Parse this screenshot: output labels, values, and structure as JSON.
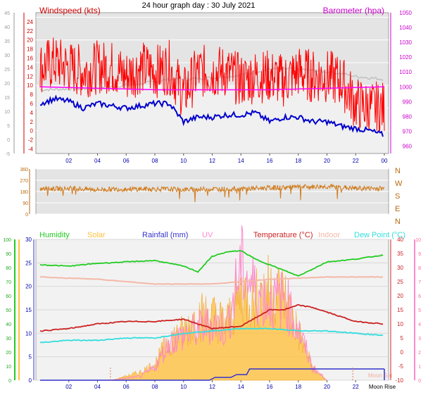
{
  "page_title": "24 hour graph day : 30 July 2021",
  "colors": {
    "windspeed": "#ff0000",
    "windavg": "#0000cc",
    "barometer": "#ff00ff",
    "baro_trace": "#c0c0c0",
    "direction": "#d07a1a",
    "humidity": "#22cc22",
    "solar": "#ffc040",
    "rainfall": "#3333cc",
    "uv": "#ff88cc",
    "temperature": "#cc2222",
    "indoor": "#f4b8a8",
    "dewpoint": "#33dddd",
    "plot_bg": "#e4e4e4",
    "plot_bg_light": "#f2f2f2"
  },
  "chart_data": [
    {
      "type": "line",
      "panel": "wind",
      "left_axis_label": "Windspeed (kts)",
      "right_axis_label": "Barometer (hpa)",
      "y_left": {
        "range": [
          -5,
          26
        ],
        "ticks": [
          -5,
          -4,
          -2,
          0,
          2,
          4,
          5,
          6,
          8,
          10,
          12,
          14,
          15,
          16,
          18,
          20,
          22,
          24,
          25
        ]
      },
      "y_left_outer": {
        "range": [
          -5,
          45
        ],
        "ticks": [
          -5,
          0,
          5,
          10,
          15,
          20,
          25,
          30,
          35,
          40,
          45
        ]
      },
      "y_right": {
        "range": [
          955,
          1050
        ],
        "ticks": [
          960,
          970,
          980,
          990,
          1000,
          1010,
          1020,
          1030,
          1040,
          1050
        ]
      },
      "x_ticks": [
        "02",
        "04",
        "06",
        "08",
        "10",
        "12",
        "14",
        "16",
        "18",
        "20",
        "22",
        "00"
      ],
      "series": [
        {
          "name": "Windspeed",
          "x_hours": [
            0,
            1,
            2,
            3,
            4,
            5,
            6,
            7,
            8,
            9,
            10,
            11,
            12,
            13,
            14,
            15,
            16,
            17,
            18,
            19,
            20,
            21,
            22,
            23,
            24
          ],
          "values": [
            14,
            15,
            14,
            13,
            14,
            14,
            12,
            14,
            13,
            14,
            8,
            13,
            13,
            13,
            11,
            12,
            12,
            11,
            13,
            12,
            12,
            11,
            6,
            5,
            5
          ]
        },
        {
          "name": "Average",
          "x_hours": [
            0,
            1,
            2,
            3,
            4,
            5,
            6,
            7,
            8,
            9,
            10,
            11,
            12,
            13,
            14,
            15,
            16,
            17,
            18,
            19,
            20,
            21,
            22,
            23,
            24
          ],
          "values": [
            6,
            7,
            6.5,
            5,
            6,
            5.5,
            5,
            5.5,
            6,
            6,
            2,
            3,
            3,
            3.5,
            3.5,
            4,
            2,
            3,
            3,
            2,
            2,
            1,
            0.5,
            0,
            -1
          ]
        },
        {
          "name": "Barometer",
          "x_hours": [
            0,
            4,
            8,
            12,
            16,
            20,
            24
          ],
          "values": [
            1000,
            999,
            998,
            998,
            998,
            999,
            1000
          ]
        },
        {
          "name": "Barometer trace",
          "x_hours": [
            0,
            4,
            7,
            9,
            12,
            14,
            16,
            18,
            20,
            21,
            22,
            24
          ],
          "values": [
            998,
            999,
            1002,
            1005,
            1006,
            1008,
            1012,
            1012,
            1010,
            1009,
            1007,
            1005
          ]
        }
      ]
    },
    {
      "type": "line",
      "panel": "direction",
      "y_left": {
        "range": [
          0,
          360
        ],
        "ticks": [
          0,
          90,
          180,
          270,
          360
        ]
      },
      "y_right_labels": [
        "N",
        "W",
        "S",
        "E",
        "N"
      ],
      "series": [
        {
          "name": "Wind direction",
          "x_hours": [
            0,
            2,
            4,
            6,
            8,
            10,
            12,
            14,
            16,
            18,
            20,
            22,
            24
          ],
          "values": [
            200,
            205,
            195,
            200,
            200,
            195,
            200,
            200,
            210,
            215,
            220,
            205,
            205
          ]
        }
      ]
    },
    {
      "type": "line",
      "panel": "temperature",
      "legend": [
        "Humidity",
        "Solar",
        "Rainfall (mm)",
        "UV",
        "Temperature (°C)",
        "Indoor",
        "Dew Point (°C)"
      ],
      "y_outer_left": {
        "range": [
          0,
          100
        ],
        "ticks": [
          0,
          10,
          20,
          30,
          40,
          50,
          60,
          70,
          80,
          90,
          100
        ]
      },
      "y_inner_left": {
        "range": [
          0,
          30
        ],
        "ticks": [
          0,
          5,
          10,
          15,
          20,
          25,
          30
        ]
      },
      "y_right_temp": {
        "range": [
          -10,
          40
        ],
        "ticks": [
          -10,
          -5,
          0,
          5,
          10,
          15,
          20,
          25,
          30,
          35,
          40
        ]
      },
      "y_right_uv": {
        "range": [
          0,
          10
        ],
        "ticks": [
          0,
          1,
          2,
          3,
          4,
          5,
          6,
          7,
          8,
          9,
          10
        ]
      },
      "x_ticks": [
        "02",
        "04",
        "06",
        "08",
        "10",
        "12",
        "14",
        "16",
        "18",
        "20",
        "22"
      ],
      "moon_labels": [
        "Moon Rise",
        "Moon Set"
      ],
      "series": [
        {
          "name": "Humidity",
          "x_hours": [
            0,
            2,
            4,
            6,
            8,
            10,
            11,
            12,
            13,
            14,
            15,
            16,
            17,
            18,
            19,
            20,
            22,
            24
          ],
          "values": [
            82,
            81,
            83,
            84,
            85,
            81,
            77,
            88,
            91,
            92,
            86,
            82,
            78,
            74,
            79,
            84,
            86,
            89
          ]
        },
        {
          "name": "Temperature",
          "x_hours": [
            0,
            2,
            4,
            6,
            8,
            10,
            12,
            14,
            16,
            17,
            18,
            19,
            20,
            22,
            24
          ],
          "values": [
            10.5,
            11,
            12,
            12.5,
            12.5,
            13,
            11,
            11.5,
            15,
            15,
            16,
            15.5,
            14.5,
            12.5,
            12
          ]
        },
        {
          "name": "Dew Point",
          "x_hours": [
            0,
            2,
            4,
            6,
            8,
            10,
            12,
            14,
            16,
            18,
            20,
            22,
            24
          ],
          "values": [
            8,
            8.5,
            8.5,
            9,
            9,
            10,
            10.5,
            11,
            11,
            10.5,
            10.5,
            10,
            9.5
          ]
        },
        {
          "name": "Indoor",
          "x_hours": [
            0,
            4,
            8,
            12,
            16,
            20,
            24
          ],
          "values": [
            22,
            21.5,
            20.5,
            20.5,
            21.5,
            22,
            22
          ]
        },
        {
          "name": "Rainfall (mm)",
          "x_hours": [
            0,
            11.8,
            12.2,
            13.3,
            13.7,
            14.4,
            14.6,
            24
          ],
          "values": [
            0,
            0,
            0.6,
            0.6,
            1.2,
            1.2,
            2.4,
            2.4
          ]
        },
        {
          "name": "Solar",
          "x_hours": [
            5,
            6,
            7,
            8,
            9,
            10,
            11,
            12,
            13,
            14,
            15,
            16,
            17,
            18,
            19,
            20
          ],
          "values": [
            0,
            1,
            2,
            4,
            10,
            12,
            16,
            16,
            14,
            22,
            20,
            23,
            21,
            12,
            3,
            0
          ]
        },
        {
          "name": "UV",
          "x_hours": [
            5,
            7,
            8,
            9,
            10,
            11,
            12,
            13,
            14,
            15,
            16,
            17,
            18,
            19,
            20
          ],
          "values": [
            0,
            0.3,
            1,
            3,
            3.5,
            4,
            4.5,
            4,
            9,
            7,
            6,
            6.5,
            4,
            1,
            0
          ]
        }
      ]
    }
  ]
}
